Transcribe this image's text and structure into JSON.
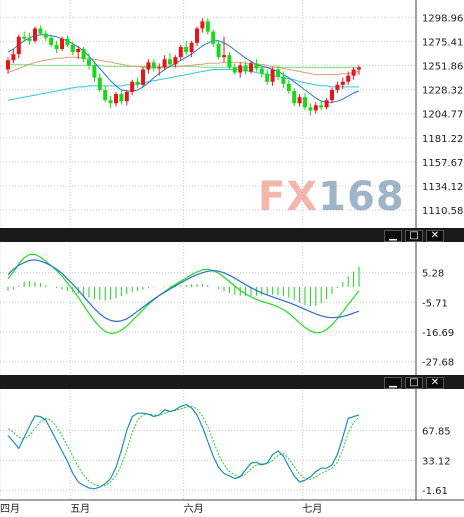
{
  "watermark": {
    "fx": "FX",
    "num": "168"
  },
  "colors": {
    "up": "#e8141b",
    "down": "#19d819",
    "ma_fast": "#1e78d6",
    "ma_mid": "#30c8e0",
    "ma_slow": "#d7a276",
    "flat": "#7fe07f",
    "macd_dif": "#2a6fd3",
    "macd_dea": "#22dd22",
    "hist": "#22cc22",
    "k": "#1a8fb8",
    "d": "#22cc22",
    "grid": "#cccccc"
  },
  "chart_data": [
    {
      "type": "candlestick",
      "yticks": [
        1298.96,
        1275.41,
        1251.86,
        1228.32,
        1204.77,
        1181.22,
        1157.67,
        1134.12,
        1110.58
      ],
      "ylim": [
        1100,
        1310
      ],
      "series": [
        {
          "name": "ohlc",
          "values": [
            [
              1248,
              1260,
              1244,
              1257
            ],
            [
              1257,
              1268,
              1254,
              1263
            ],
            [
              1263,
              1282,
              1259,
              1280
            ],
            [
              1280,
              1285,
              1275,
              1278
            ],
            [
              1278,
              1284,
              1272,
              1276
            ],
            [
              1276,
              1290,
              1274,
              1288
            ],
            [
              1288,
              1291,
              1281,
              1283
            ],
            [
              1283,
              1286,
              1276,
              1279
            ],
            [
              1279,
              1282,
              1270,
              1272
            ],
            [
              1272,
              1276,
              1264,
              1268
            ],
            [
              1268,
              1280,
              1266,
              1278
            ],
            [
              1278,
              1281,
              1270,
              1272
            ],
            [
              1272,
              1275,
              1262,
              1265
            ],
            [
              1265,
              1271,
              1258,
              1268
            ],
            [
              1268,
              1270,
              1255,
              1258
            ],
            [
              1258,
              1264,
              1248,
              1252
            ],
            [
              1252,
              1256,
              1236,
              1240
            ],
            [
              1240,
              1244,
              1226,
              1228
            ],
            [
              1228,
              1232,
              1216,
              1218
            ],
            [
              1218,
              1222,
              1210,
              1215
            ],
            [
              1215,
              1226,
              1212,
              1224
            ],
            [
              1224,
              1228,
              1214,
              1217
            ],
            [
              1217,
              1228,
              1213,
              1226
            ],
            [
              1226,
              1238,
              1223,
              1236
            ],
            [
              1236,
              1240,
              1230,
              1233
            ],
            [
              1233,
              1250,
              1231,
              1248
            ],
            [
              1248,
              1258,
              1244,
              1255
            ],
            [
              1255,
              1258,
              1246,
              1249
            ],
            [
              1249,
              1254,
              1242,
              1250
            ],
            [
              1250,
              1262,
              1247,
              1258
            ],
            [
              1258,
              1264,
              1250,
              1253
            ],
            [
              1253,
              1262,
              1250,
              1260
            ],
            [
              1260,
              1272,
              1257,
              1270
            ],
            [
              1270,
              1276,
              1262,
              1265
            ],
            [
              1265,
              1276,
              1260,
              1274
            ],
            [
              1274,
              1290,
              1271,
              1288
            ],
            [
              1288,
              1298,
              1284,
              1295
            ],
            [
              1295,
              1298,
              1282,
              1285
            ],
            [
              1285,
              1287,
              1270,
              1273
            ],
            [
              1273,
              1276,
              1258,
              1260
            ],
            [
              1260,
              1280,
              1255,
              1262
            ],
            [
              1262,
              1265,
              1248,
              1250
            ],
            [
              1250,
              1254,
              1243,
              1245
            ],
            [
              1245,
              1255,
              1240,
              1252
            ],
            [
              1252,
              1256,
              1243,
              1246
            ],
            [
              1246,
              1256,
              1244,
              1254
            ],
            [
              1254,
              1258,
              1246,
              1249
            ],
            [
              1249,
              1252,
              1240,
              1244
            ],
            [
              1244,
              1248,
              1233,
              1236
            ],
            [
              1236,
              1250,
              1232,
              1248
            ],
            [
              1248,
              1252,
              1238,
              1241
            ],
            [
              1241,
              1246,
              1230,
              1234
            ],
            [
              1234,
              1238,
              1224,
              1227
            ],
            [
              1227,
              1230,
              1212,
              1215
            ],
            [
              1215,
              1224,
              1212,
              1221
            ],
            [
              1221,
              1225,
              1208,
              1211
            ],
            [
              1211,
              1215,
              1203,
              1208
            ],
            [
              1208,
              1216,
              1205,
              1213
            ],
            [
              1213,
              1218,
              1208,
              1211
            ],
            [
              1211,
              1220,
              1209,
              1218
            ],
            [
              1218,
              1230,
              1215,
              1228
            ],
            [
              1228,
              1236,
              1225,
              1233
            ],
            [
              1233,
              1240,
              1229,
              1236
            ],
            [
              1236,
              1246,
              1233,
              1242
            ],
            [
              1242,
              1250,
              1238,
              1248
            ],
            [
              1248,
              1252,
              1243,
              1250
            ]
          ]
        },
        {
          "name": "ma_fast",
          "values": [
            1265,
            1268,
            1272,
            1276,
            1279,
            1281,
            1282,
            1282,
            1281,
            1280,
            1278,
            1276,
            1273,
            1270,
            1266,
            1261,
            1255,
            1249,
            1243,
            1237,
            1232,
            1228,
            1227,
            1227,
            1228,
            1231,
            1235,
            1240,
            1244,
            1248,
            1251,
            1254,
            1257,
            1260,
            1263,
            1267,
            1271,
            1274,
            1276,
            1276,
            1274,
            1271,
            1267,
            1263,
            1259,
            1256,
            1253,
            1251,
            1250,
            1248,
            1246,
            1243,
            1240,
            1236,
            1232,
            1228,
            1224,
            1220,
            1217,
            1216,
            1216,
            1217,
            1219,
            1222,
            1225,
            1227
          ]
        },
        {
          "name": "ma_mid",
          "values": [
            1218,
            1219,
            1220,
            1221,
            1222,
            1223,
            1224,
            1225,
            1226,
            1227,
            1228,
            1229,
            1230,
            1231,
            1231,
            1232,
            1232,
            1232,
            1232,
            1232,
            1232,
            1232,
            1233,
            1233,
            1234,
            1235,
            1236,
            1237,
            1238,
            1239,
            1240,
            1241,
            1242,
            1243,
            1244,
            1245,
            1246,
            1247,
            1248,
            1248,
            1248,
            1248,
            1248,
            1248,
            1247,
            1246,
            1245,
            1244,
            1243,
            1242,
            1241,
            1240,
            1239,
            1238,
            1236,
            1235,
            1234,
            1233,
            1232,
            1232,
            1231,
            1231,
            1231,
            1231,
            1231,
            1231
          ]
        },
        {
          "name": "ma_slow",
          "values": [
            1245,
            1247,
            1249,
            1251,
            1253,
            1255,
            1256,
            1257,
            1258,
            1259,
            1259,
            1260,
            1260,
            1260,
            1259,
            1259,
            1258,
            1257,
            1256,
            1255,
            1254,
            1253,
            1252,
            1251,
            1251,
            1250,
            1250,
            1250,
            1250,
            1250,
            1251,
            1251,
            1251,
            1252,
            1252,
            1253,
            1253,
            1254,
            1254,
            1254,
            1255,
            1255,
            1255,
            1255,
            1254,
            1254,
            1253,
            1253,
            1252,
            1251,
            1250,
            1249,
            1248,
            1247,
            1246,
            1245,
            1244,
            1243,
            1243,
            1243,
            1243,
            1243,
            1244,
            1244,
            1245,
            1246
          ]
        },
        {
          "name": "flat",
          "values": [
            1253,
            1253,
            1253,
            1253,
            1253,
            1252,
            1252,
            1252,
            1252,
            1252,
            1252,
            1252,
            1252,
            1252,
            1252,
            1252,
            1252,
            1252,
            1251,
            1251,
            1251,
            1251,
            1251,
            1251,
            1251,
            1251,
            1251,
            1251,
            1251,
            1251,
            1251,
            1251,
            1251,
            1251,
            1251,
            1251,
            1250,
            1250,
            1250,
            1250,
            1250,
            1250,
            1250,
            1250,
            1250,
            1250,
            1250,
            1250,
            1250,
            1250,
            1250,
            1250,
            1250,
            1250,
            1250,
            1250,
            1250,
            1250,
            1250,
            1250,
            1250,
            1250,
            1250,
            1250,
            1250,
            1250
          ]
        }
      ]
    },
    {
      "type": "line",
      "yticks": [
        5.28,
        -5.71,
        -16.69,
        -27.68
      ],
      "ylim": [
        -30,
        14
      ],
      "series": [
        {
          "name": "dif",
          "values": [
            4.5,
            6.5,
            8,
            9,
            9.8,
            10,
            9.6,
            8.8,
            7.8,
            6.5,
            5,
            3,
            1,
            -1.2,
            -3.5,
            -5.8,
            -8,
            -10,
            -11.5,
            -12.4,
            -12.8,
            -12.6,
            -11.8,
            -10.5,
            -9,
            -7.5,
            -6,
            -4.6,
            -3.2,
            -2,
            -0.8,
            0.4,
            1.5,
            2.6,
            3.6,
            4.5,
            5.2,
            5.8,
            6,
            5.8,
            5.2,
            4.3,
            3.2,
            2,
            0.8,
            -0.3,
            -1.3,
            -2.2,
            -3,
            -3.7,
            -4.4,
            -5.1,
            -5.8,
            -6.6,
            -7.4,
            -8.3,
            -9.2,
            -10,
            -10.7,
            -11.2,
            -11.4,
            -11.3,
            -11,
            -10.4,
            -9.7,
            -9
          ]
        },
        {
          "name": "dea",
          "values": [
            3,
            5.5,
            8.5,
            10.8,
            12,
            12,
            11,
            9.5,
            7.8,
            6,
            4,
            1.5,
            -1,
            -3.8,
            -6.8,
            -9.8,
            -12.5,
            -14.8,
            -16.5,
            -17.2,
            -17,
            -16,
            -14.5,
            -12.5,
            -10.5,
            -8.5,
            -6.5,
            -4.8,
            -3.2,
            -1.8,
            -0.4,
            0.9,
            2.1,
            3.3,
            4.5,
            5.5,
            6.3,
            6.5,
            6,
            5,
            3.6,
            2,
            0.3,
            -1.3,
            -2.6,
            -3.7,
            -4.6,
            -5.4,
            -6,
            -6.6,
            -7.4,
            -8.4,
            -9.8,
            -11.5,
            -13.3,
            -15,
            -16.3,
            -17,
            -16.8,
            -15.8,
            -14,
            -11.8,
            -9.2,
            -6.5,
            -4,
            -1.5
          ]
        },
        {
          "name": "hist",
          "values": [
            -1.5,
            -1,
            0.5,
            1.8,
            2.2,
            2,
            1.4,
            0.7,
            0,
            -0.5,
            -1,
            -1.5,
            -2,
            -2.6,
            -3.3,
            -4,
            -4.5,
            -4.8,
            -5,
            -4.8,
            -4.2,
            -3.4,
            -2.7,
            -2,
            -1.5,
            -1,
            -0.5,
            -0.2,
            0,
            0.2,
            0.4,
            0.5,
            0.6,
            0.7,
            0.9,
            1,
            1.1,
            0.7,
            0,
            -0.8,
            -1.6,
            -2.3,
            -2.9,
            -3.3,
            -3.4,
            -3.4,
            -3.3,
            -3.2,
            -3,
            -2.9,
            -3,
            -3.3,
            -4,
            -4.9,
            -5.9,
            -6.7,
            -7.1,
            -7,
            -6.1,
            -4.6,
            -2.6,
            -0.5,
            1.8,
            3.9,
            5.7,
            7.5
          ]
        }
      ]
    },
    {
      "type": "line",
      "yticks": [
        67.85,
        33.12,
        -1.61
      ],
      "ylim": [
        -6,
        108
      ],
      "series": [
        {
          "name": "k",
          "values": [
            62,
            55,
            47,
            60,
            73,
            85,
            84,
            80,
            68,
            56,
            44,
            32,
            18,
            8,
            4,
            1,
            0,
            2,
            6,
            12,
            25,
            45,
            68,
            84,
            88,
            88,
            87,
            84,
            86,
            92,
            90,
            92,
            96,
            98,
            94,
            86,
            72,
            55,
            38,
            25,
            18,
            15,
            12,
            14,
            22,
            30,
            31,
            28,
            30,
            40,
            44,
            38,
            26,
            15,
            8,
            10,
            14,
            20,
            24,
            24,
            28,
            40,
            60,
            82,
            84,
            86
          ]
        },
        {
          "name": "d",
          "values": [
            70,
            66,
            60,
            58,
            62,
            70,
            78,
            82,
            80,
            72,
            62,
            50,
            38,
            26,
            16,
            9,
            5,
            3,
            4,
            8,
            15,
            28,
            45,
            65,
            80,
            86,
            87,
            86,
            85,
            88,
            90,
            91,
            93,
            95,
            96,
            93,
            85,
            72,
            56,
            40,
            28,
            20,
            16,
            14,
            17,
            23,
            28,
            29,
            29,
            33,
            39,
            41,
            35,
            26,
            17,
            12,
            11,
            14,
            18,
            21,
            24,
            31,
            45,
            65,
            77,
            84
          ]
        }
      ]
    }
  ],
  "xaxis": {
    "labels": [
      "四月",
      "五月",
      "六月",
      "七月"
    ]
  },
  "window_controls": {
    "minimize": "▁",
    "maximize": "□",
    "close": "✕"
  }
}
